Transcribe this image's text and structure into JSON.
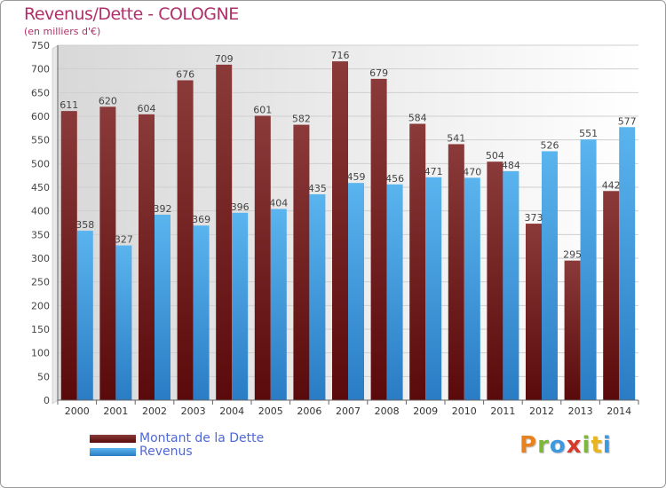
{
  "header": {
    "title": "Revenus/Dette - COLOGNE",
    "subtitle": "(en milliers d'€)"
  },
  "legend": {
    "items": [
      {
        "label": "Montant de la Dette",
        "color": "#7a1a1e"
      },
      {
        "label": "Revenus",
        "color": "#3d98de"
      }
    ]
  },
  "logo": {
    "text": "Proxiti",
    "letters": [
      "P",
      "r",
      "o",
      "x",
      "i",
      "t",
      "i"
    ],
    "colors": [
      "#e8821e",
      "#7db83a",
      "#3d98de",
      "#d63a2a",
      "#7db83a",
      "#e8b51e",
      "#3d98de"
    ]
  },
  "colors": {
    "debt_top": "#8b3a3a",
    "debt_bottom": "#5a0a0a",
    "rev_top": "#5ab4ee",
    "rev_bottom": "#2a7cc4",
    "grid": "#cfcfcf",
    "plot_bg_left": "#d8d8d8",
    "plot_bg_right": "#ffffff"
  },
  "chart_data": {
    "type": "bar",
    "title": "Revenus/Dette - COLOGNE",
    "ylabel": "(en milliers d'€)",
    "xlabel": "",
    "categories": [
      "2000",
      "2001",
      "2002",
      "2003",
      "2004",
      "2005",
      "2006",
      "2007",
      "2008",
      "2009",
      "2010",
      "2011",
      "2012",
      "2013",
      "2014"
    ],
    "series": [
      {
        "name": "Montant de la Dette",
        "values": [
          611,
          620,
          604,
          676,
          709,
          601,
          582,
          716,
          679,
          584,
          541,
          504,
          373,
          295,
          442
        ]
      },
      {
        "name": "Revenus",
        "values": [
          358,
          327,
          392,
          369,
          396,
          404,
          435,
          459,
          456,
          471,
          470,
          484,
          526,
          551,
          577
        ]
      }
    ],
    "ylim": [
      0,
      750
    ],
    "yticks": [
      0,
      50,
      100,
      150,
      200,
      250,
      300,
      350,
      400,
      450,
      500,
      550,
      600,
      650,
      700,
      750
    ],
    "grid": true,
    "legend_position": "bottom-left"
  }
}
